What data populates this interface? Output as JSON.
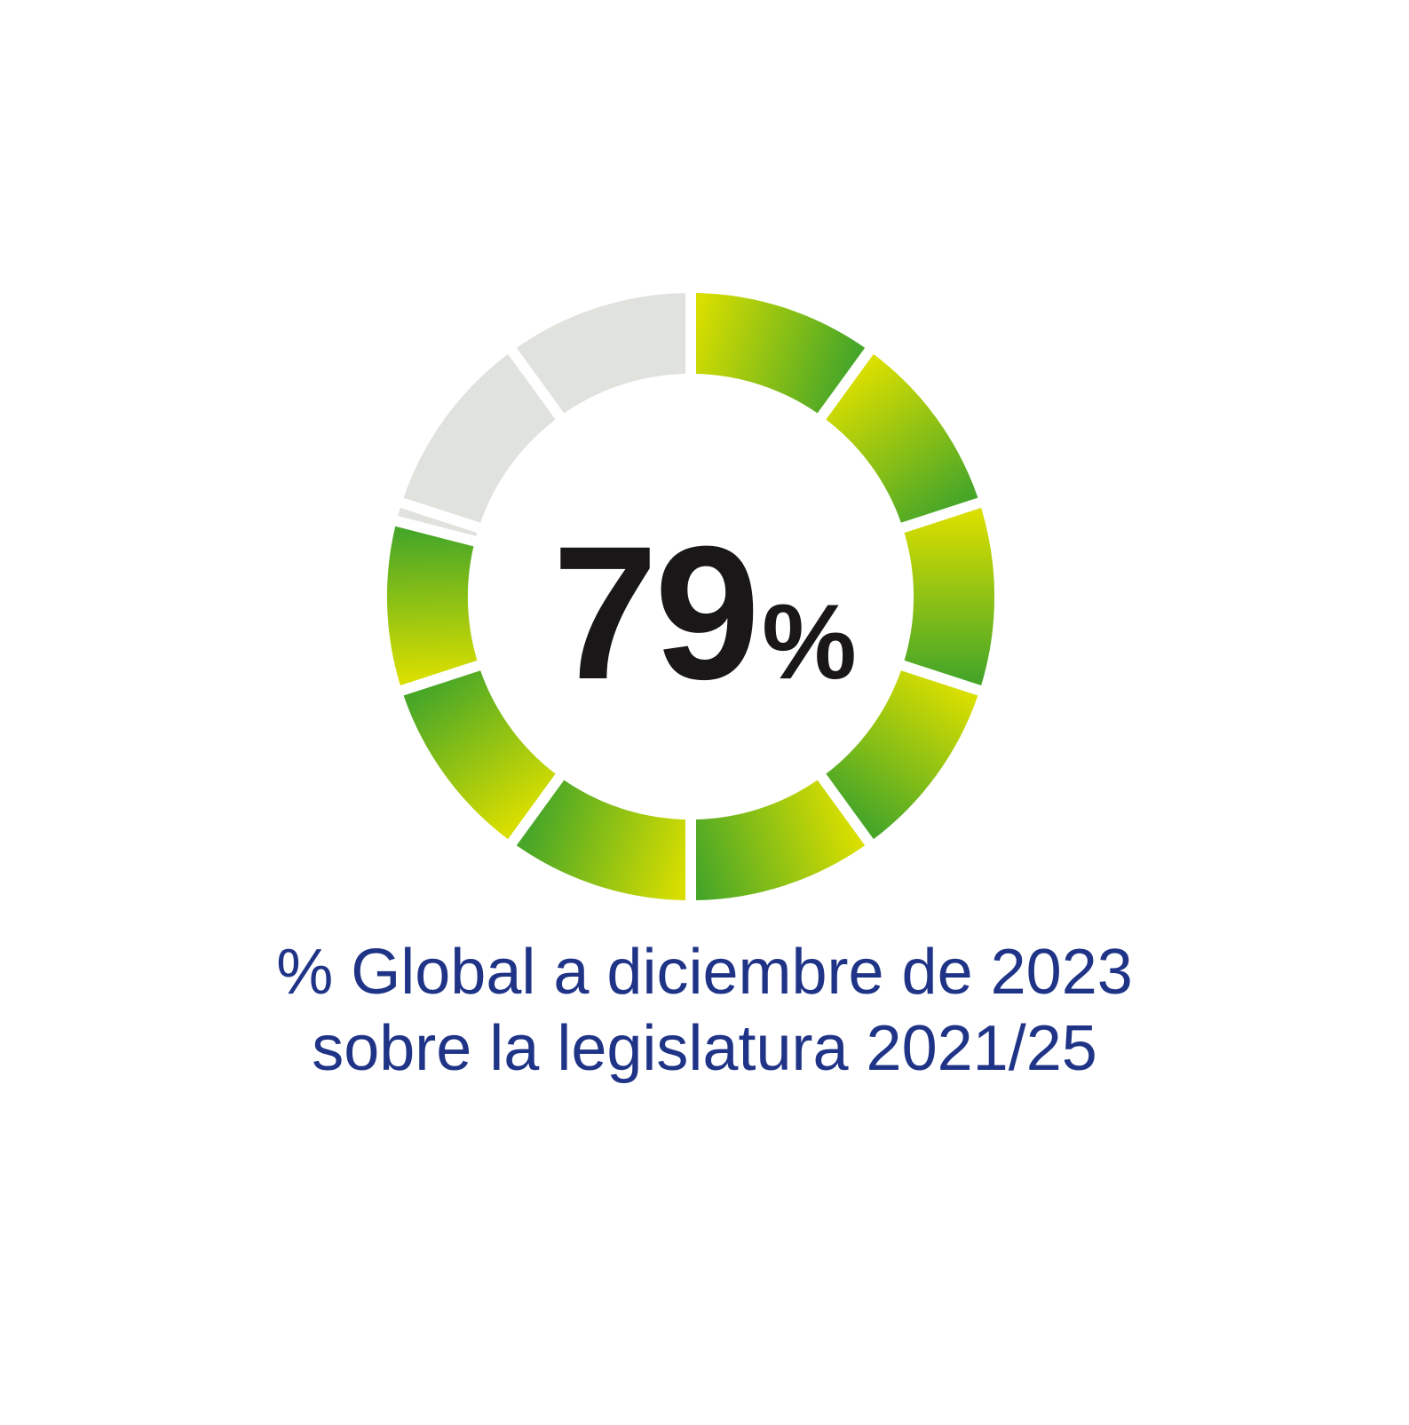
{
  "chart_data": {
    "type": "pie",
    "style": "segmented-donut",
    "segments_total": 10,
    "value_percent": 79,
    "center_label": {
      "value": "79",
      "unit": "%"
    },
    "caption_lines": [
      "% Global a diciembre de 2023",
      "sobre la legislatura 2021/25"
    ],
    "legend": "none",
    "grid": false
  },
  "colors": {
    "fill_start": "#d8de00",
    "fill_end": "#47a628",
    "remainder": "#e0e2dd",
    "center_text": "#1a1718",
    "caption_text": "#1f3487",
    "background": "#ffffff"
  }
}
